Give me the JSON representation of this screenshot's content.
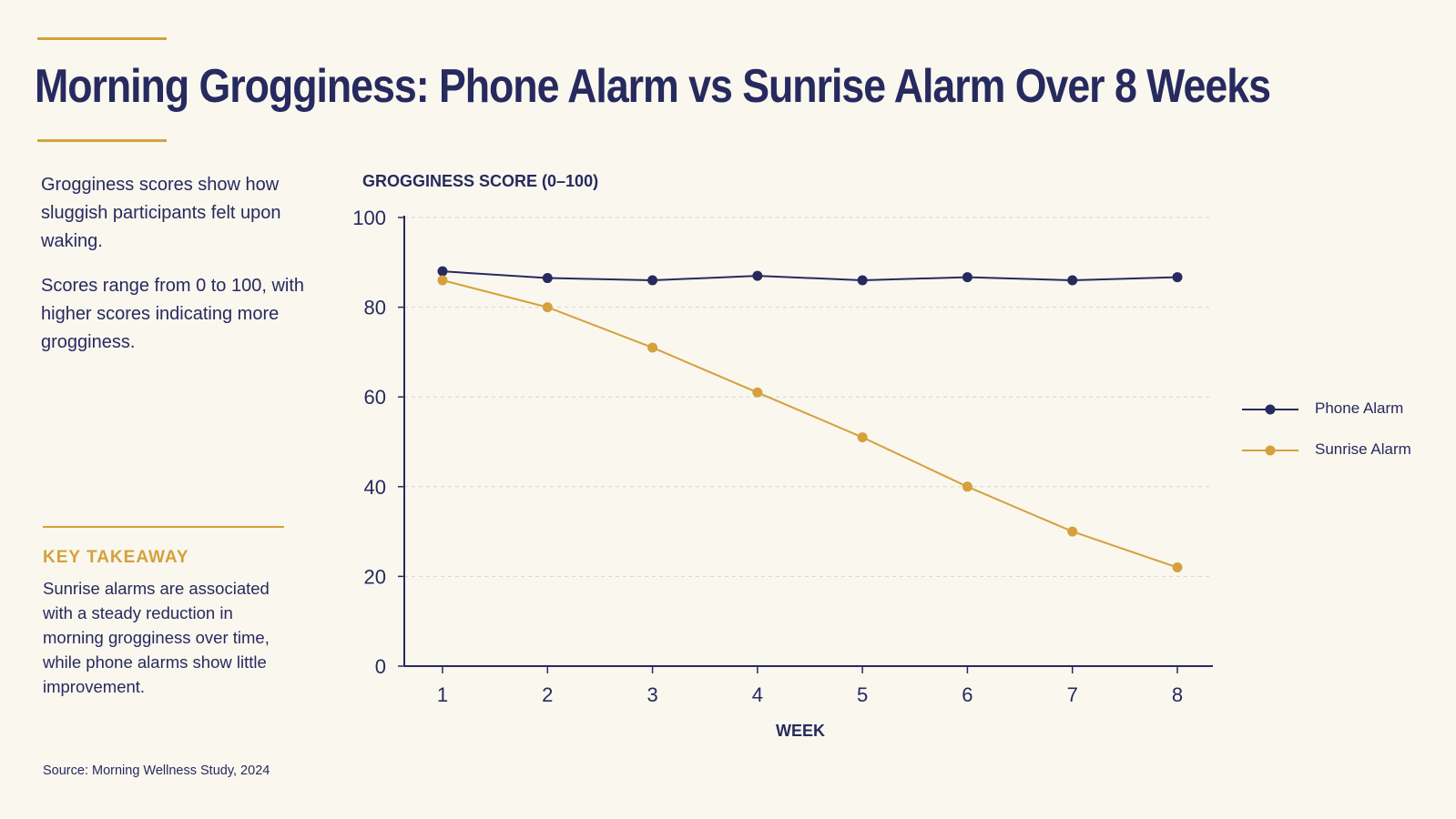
{
  "header": {
    "title": "Morning Grogginess: Phone Alarm vs Sunrise Alarm Over 8 Weeks"
  },
  "sidebar": {
    "intro_1": "Grogginess scores show how sluggish participants felt upon waking.",
    "intro_2": "Scores range from 0 to 100, with higher scores indicating more grogginess.",
    "takeaway_label": "KEY TAKEAWAY",
    "takeaway_text": "Sunrise alarms are associated with a steady reduction in morning grogginess over time, while phone alarms show little improvement.",
    "source": "Source: Morning Wellness Study, 2024"
  },
  "colors": {
    "background": "#faf7ef",
    "navy": "#262a5e",
    "gold": "#d4a13c",
    "grid": "#d9d6cd"
  },
  "chart_data": {
    "type": "line",
    "title": "",
    "xlabel": "WEEK",
    "ylabel": "GROGGINESS SCORE (0–100)",
    "x": [
      1,
      2,
      3,
      4,
      5,
      6,
      7,
      8
    ],
    "ylim": [
      0,
      100
    ],
    "yticks": [
      0,
      20,
      40,
      60,
      80,
      100
    ],
    "grid": "horizontal-dashed",
    "legend_position": "right",
    "series": [
      {
        "name": "Phone Alarm",
        "color": "#262a5e",
        "values": [
          88,
          86.5,
          86,
          87,
          86,
          86.7,
          86,
          86.7
        ]
      },
      {
        "name": "Sunrise Alarm",
        "color": "#d4a13c",
        "values": [
          86,
          80,
          71,
          61,
          51,
          40,
          30,
          22
        ]
      }
    ]
  }
}
